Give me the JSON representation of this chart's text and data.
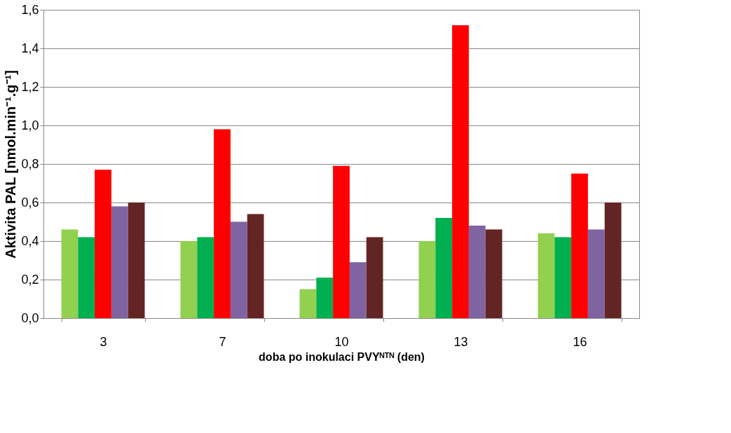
{
  "chart_data": {
    "type": "bar",
    "xlabel": "doba po inokulaci PVYᴺᵀᴺ (den)",
    "ylabel": "Aktivita PAL [nmol.min⁻¹.g⁻¹]",
    "categories": [
      "3",
      "7",
      "10",
      "13",
      "16"
    ],
    "series": [
      {
        "color": "#92d050",
        "values": [
          0.46,
          0.4,
          0.15,
          0.4,
          0.44
        ]
      },
      {
        "color": "#00b050",
        "values": [
          0.42,
          0.42,
          0.21,
          0.52,
          0.42
        ]
      },
      {
        "color": "#ff0000",
        "values": [
          0.77,
          0.98,
          0.79,
          1.52,
          0.75
        ]
      },
      {
        "color": "#8064a2",
        "values": [
          0.58,
          0.5,
          0.29,
          0.48,
          0.46
        ]
      },
      {
        "color": "#632523",
        "values": [
          0.6,
          0.54,
          0.42,
          0.46,
          0.6
        ]
      }
    ],
    "ylim": [
      0,
      1.6
    ],
    "yticks": [
      {
        "value": 0,
        "label": "0,0"
      },
      {
        "value": 0.2,
        "label": "0,2"
      },
      {
        "value": 0.4,
        "label": "0,4"
      },
      {
        "value": 0.6,
        "label": "0,6"
      },
      {
        "value": 0.8,
        "label": "0,8"
      },
      {
        "value": 1.0,
        "label": "1,0"
      },
      {
        "value": 1.2,
        "label": "1,2"
      },
      {
        "value": 1.4,
        "label": "1,4"
      },
      {
        "value": 1.6,
        "label": "1,6"
      }
    ],
    "grid": "y",
    "legend": false
  }
}
